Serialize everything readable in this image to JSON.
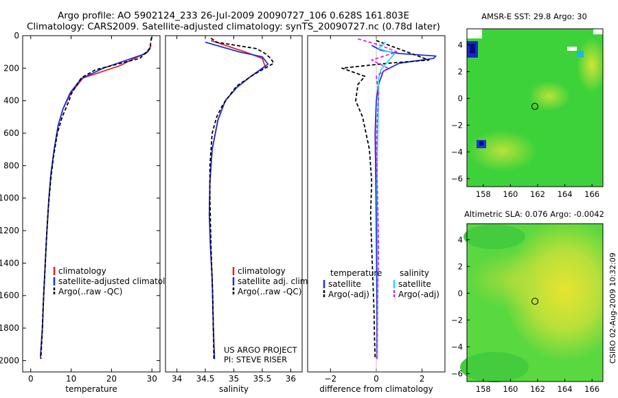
{
  "title": {
    "line1": "Argo profile: AO 5902124_233 26-Jul-2009 20090727_106 0.628S 161.803E",
    "line2": "Climatology: CARS2009. Satellite-adjusted climatology: synTS_20090727.nc (0.78d later)"
  },
  "side_label": "CSIRO 02-Aug-2009 10:32:09",
  "colors": {
    "climatology": "#e8201a",
    "satellite": "#1a2ee8",
    "argo": "#000000",
    "sat_salinity": "#22e0e8",
    "argo_adj_salinity": "#e020e0"
  },
  "chart_data": [
    {
      "type": "line",
      "name": "temperature-profile",
      "xlabel": "temperature",
      "xlim": [
        -2,
        32
      ],
      "ylim": [
        2070,
        0
      ],
      "xticks": [
        0,
        10,
        20,
        30
      ],
      "yticks": [
        0,
        200,
        400,
        600,
        800,
        1000,
        1200,
        1400,
        1600,
        1800,
        2000
      ],
      "series": [
        {
          "name": "climatology",
          "color": "#e8201a",
          "dash": "",
          "x": [
            29.8,
            29.0,
            22.0,
            13.0,
            10.0,
            8.0,
            6.8,
            5.8,
            5.0,
            4.5,
            4.0,
            3.6,
            3.2,
            2.9,
            2.6,
            2.4
          ],
          "y": [
            60,
            100,
            185,
            260,
            350,
            450,
            550,
            700,
            850,
            1000,
            1200,
            1400,
            1600,
            1800,
            1900,
            1980
          ]
        },
        {
          "name": "satellite-adjusted climatology",
          "color": "#1a2ee8",
          "dash": "",
          "x": [
            29.6,
            28.5,
            18.0,
            12.5,
            9.8,
            8.0,
            6.8,
            5.8,
            5.0,
            4.5,
            4.0,
            3.6,
            3.2,
            2.9,
            2.6,
            2.4
          ],
          "y": [
            70,
            110,
            200,
            265,
            350,
            450,
            550,
            700,
            850,
            1000,
            1200,
            1400,
            1600,
            1800,
            1900,
            1980
          ]
        },
        {
          "name": "Argo(..raw -QC)",
          "color": "#000000",
          "dash": "5,3",
          "x": [
            29.9,
            29.5,
            27.0,
            16.0,
            12.5,
            10.0,
            9.5,
            7.8,
            6.6,
            5.6,
            4.9,
            4.4,
            3.9,
            3.5,
            3.1,
            2.8,
            2.5
          ],
          "y": [
            10,
            80,
            140,
            210,
            260,
            360,
            400,
            500,
            600,
            750,
            900,
            1050,
            1250,
            1450,
            1650,
            1850,
            1990
          ]
        }
      ],
      "legend": [
        {
          "label": "climatology",
          "color": "#e8201a",
          "dash": ""
        },
        {
          "label": "satellite-adjusted climatology",
          "color": "#1a2ee8",
          "dash": ""
        },
        {
          "label": "Argo(..raw -QC)",
          "color": "#000000",
          "dash": "5,3"
        }
      ]
    },
    {
      "type": "line",
      "name": "salinity-profile",
      "xlabel": "salinity",
      "xlim": [
        33.8,
        36.2
      ],
      "ylim": [
        2070,
        0
      ],
      "xticks": [
        34,
        34.5,
        35,
        35.5,
        36
      ],
      "yticks": [],
      "series": [
        {
          "name": "climatology",
          "color": "#e8201a",
          "dash": "",
          "x": [
            34.6,
            35.2,
            35.5,
            35.55,
            35.3,
            35.05,
            34.85,
            34.72,
            34.62,
            34.58,
            34.57,
            34.59,
            34.62,
            34.64,
            34.66
          ],
          "y": [
            30,
            100,
            140,
            190,
            250,
            320,
            400,
            520,
            700,
            900,
            1100,
            1300,
            1500,
            1800,
            1990
          ]
        },
        {
          "name": "satellite adj. clim.",
          "color": "#1a2ee8",
          "dash": "",
          "x": [
            34.5,
            35.1,
            35.5,
            35.6,
            35.3,
            35.05,
            34.85,
            34.72,
            34.62,
            34.58,
            34.57,
            34.59,
            34.62,
            34.64,
            34.66
          ],
          "y": [
            40,
            100,
            130,
            175,
            250,
            320,
            400,
            520,
            700,
            900,
            1100,
            1300,
            1500,
            1800,
            1990
          ]
        },
        {
          "name": "Argo(..raw -QC)",
          "color": "#000000",
          "dash": "5,3",
          "x": [
            34.6,
            34.7,
            35.4,
            35.55,
            35.65,
            35.7,
            35.35,
            35.05,
            34.9,
            34.8,
            34.7,
            34.62,
            34.58,
            34.58,
            34.6,
            34.63,
            34.65
          ],
          "y": [
            15,
            40,
            80,
            110,
            140,
            170,
            240,
            310,
            380,
            430,
            500,
            600,
            800,
            1000,
            1300,
            1600,
            1990
          ]
        }
      ],
      "legend": [
        {
          "label": "climatology",
          "color": "#e8201a",
          "dash": ""
        },
        {
          "label": "satellite adj. clim.",
          "color": "#1a2ee8",
          "dash": ""
        },
        {
          "label": "Argo(..raw -QC)",
          "color": "#000000",
          "dash": "5,3"
        }
      ],
      "annotation": [
        "US ARGO PROJECT",
        "PI: STEVE RISER"
      ]
    },
    {
      "type": "line",
      "name": "difference-profile",
      "xlabel": "difference from climatology",
      "xlim": [
        -3,
        3
      ],
      "ylim": [
        2070,
        0
      ],
      "xticks": [
        -2,
        0,
        2
      ],
      "yticks": [],
      "series": [
        {
          "name": "temperature satellite",
          "color": "#1a2ee8",
          "dash": "",
          "x": [
            -0.2,
            0.2,
            1.0,
            2.6,
            2.5,
            1.0,
            0.3,
            0.1,
            0.0,
            -0.05,
            -0.02,
            0.0,
            0.02,
            0.03,
            0.02
          ],
          "y": [
            60,
            90,
            110,
            125,
            140,
            170,
            220,
            300,
            400,
            600,
            900,
            1200,
            1500,
            1800,
            1990
          ]
        },
        {
          "name": "temperature Argo(-adj)",
          "color": "#000000",
          "dash": "5,3",
          "x": [
            0.0,
            2.3,
            0.5,
            -1.5,
            -0.5,
            -0.8,
            -0.9,
            -0.6,
            -0.3,
            -0.2,
            -0.25,
            -0.2,
            -0.15,
            -0.1,
            -0.08,
            -0.05
          ],
          "y": [
            30,
            150,
            170,
            200,
            250,
            300,
            400,
            500,
            700,
            900,
            1100,
            1300,
            1500,
            1700,
            1850,
            1990
          ]
        },
        {
          "name": "salinity satellite",
          "color": "#22e0e8",
          "dash": "",
          "x": [
            0.4,
            0.1,
            0.8,
            0.5,
            0.2,
            0.1,
            0.1,
            0.08,
            0.05,
            0.03,
            0.05,
            0.06,
            0.05,
            0.04
          ],
          "y": [
            40,
            80,
            110,
            160,
            210,
            260,
            350,
            500,
            700,
            900,
            1200,
            1500,
            1800,
            1990
          ]
        },
        {
          "name": "salinity Argo(-adj)",
          "color": "#e020e0",
          "dash": "5,3",
          "x": [
            -0.8,
            0.2,
            0.9,
            -0.2,
            0.5,
            0.0,
            0.1,
            0.05,
            0.0,
            0.05,
            0.1,
            0.05,
            0.03
          ],
          "y": [
            20,
            60,
            100,
            150,
            200,
            250,
            350,
            500,
            700,
            950,
            1300,
            1650,
            1990
          ]
        }
      ],
      "legend_headers": [
        "temperature",
        "salinity"
      ],
      "legend": [
        {
          "label": "satellite",
          "color": "#1a2ee8",
          "dash": "",
          "column": 0
        },
        {
          "label": "Argo(-adj)",
          "color": "#000000",
          "dash": "5,3",
          "column": 0
        },
        {
          "label": "satellite",
          "color": "#22e0e8",
          "dash": "",
          "column": 1
        },
        {
          "label": "Argo(-adj)",
          "color": "#e020e0",
          "dash": "5,3",
          "column": 1
        }
      ]
    },
    {
      "type": "heatmap",
      "name": "sst-map",
      "title": "AMSR-E SST: 29.8 Argo: 30",
      "xlim": [
        156.8,
        166.8
      ],
      "ylim": [
        -6.6,
        5.2
      ],
      "xticks": [
        158,
        160,
        162,
        164,
        166
      ],
      "yticks": [
        -6,
        -4,
        -2,
        0,
        2,
        4
      ],
      "marker": {
        "lon": 161.8,
        "lat": -0.6
      },
      "base_color": "#3ed23a"
    },
    {
      "type": "heatmap",
      "name": "sla-map",
      "title": "Altimetric SLA: 0.076 Argo: -0.0042",
      "xlim": [
        156.8,
        166.8
      ],
      "ylim": [
        -6.6,
        5.2
      ],
      "xticks": [
        158,
        160,
        162,
        164,
        166
      ],
      "yticks": [
        -6,
        -4,
        -2,
        0,
        2,
        4
      ],
      "marker": {
        "lon": 161.8,
        "lat": -0.6
      },
      "base_color": "#5ad840"
    }
  ]
}
